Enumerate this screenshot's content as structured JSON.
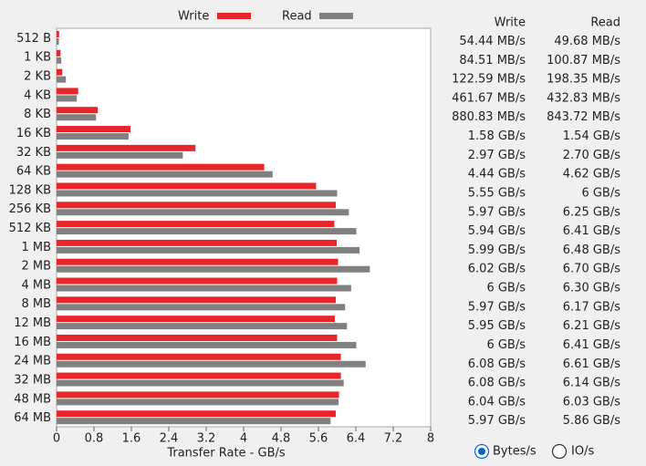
{
  "chart_data": {
    "type": "bar",
    "orientation": "horizontal",
    "categories": [
      "512 B",
      "1 KB",
      "2 KB",
      "4 KB",
      "8 KB",
      "16 KB",
      "32 KB",
      "64 KB",
      "128 KB",
      "256 KB",
      "512 KB",
      "1 MB",
      "2 MB",
      "4 MB",
      "8 MB",
      "12 MB",
      "16 MB",
      "24 MB",
      "32 MB",
      "48 MB",
      "64 MB"
    ],
    "series": [
      {
        "name": "Write",
        "color": "#e8262a",
        "values": [
          0.05444,
          0.08451,
          0.12259,
          0.46167,
          0.88083,
          1.58,
          2.97,
          4.44,
          5.55,
          5.97,
          5.94,
          5.99,
          6.02,
          6,
          5.97,
          5.95,
          6,
          6.08,
          6.08,
          6.04,
          5.97
        ],
        "value_labels": [
          "54.44 MB/s",
          "84.51 MB/s",
          "122.59 MB/s",
          "461.67 MB/s",
          "880.83 MB/s",
          "1.58 GB/s",
          "2.97 GB/s",
          "4.44 GB/s",
          "5.55 GB/s",
          "5.97 GB/s",
          "5.94 GB/s",
          "5.99 GB/s",
          "6.02 GB/s",
          "6 GB/s",
          "5.97 GB/s",
          "5.95 GB/s",
          "6 GB/s",
          "6.08 GB/s",
          "6.08 GB/s",
          "6.04 GB/s",
          "5.97 GB/s"
        ]
      },
      {
        "name": "Read",
        "color": "#808080",
        "values": [
          0.04968,
          0.10087,
          0.19835,
          0.43283,
          0.84372,
          1.54,
          2.7,
          4.62,
          6,
          6.25,
          6.41,
          6.48,
          6.7,
          6.3,
          6.17,
          6.21,
          6.41,
          6.61,
          6.14,
          6.03,
          5.86
        ],
        "value_labels": [
          "49.68 MB/s",
          "100.87 MB/s",
          "198.35 MB/s",
          "432.83 MB/s",
          "843.72 MB/s",
          "1.54 GB/s",
          "2.70 GB/s",
          "4.62 GB/s",
          "6 GB/s",
          "6.25 GB/s",
          "6.41 GB/s",
          "6.48 GB/s",
          "6.70 GB/s",
          "6.30 GB/s",
          "6.17 GB/s",
          "6.21 GB/s",
          "6.41 GB/s",
          "6.61 GB/s",
          "6.14 GB/s",
          "6.03 GB/s",
          "5.86 GB/s"
        ]
      }
    ],
    "xlabel": "Transfer Rate - GB/s",
    "xlim": [
      0,
      8
    ],
    "xticks": [
      0,
      0.8,
      1.6,
      2.4,
      3.2,
      4,
      4.8,
      5.6,
      6.4,
      7.2,
      8
    ],
    "legend": "top",
    "grid": false
  },
  "units_toggle": {
    "options": [
      "Bytes/s",
      "IO/s"
    ],
    "selected": 0
  }
}
